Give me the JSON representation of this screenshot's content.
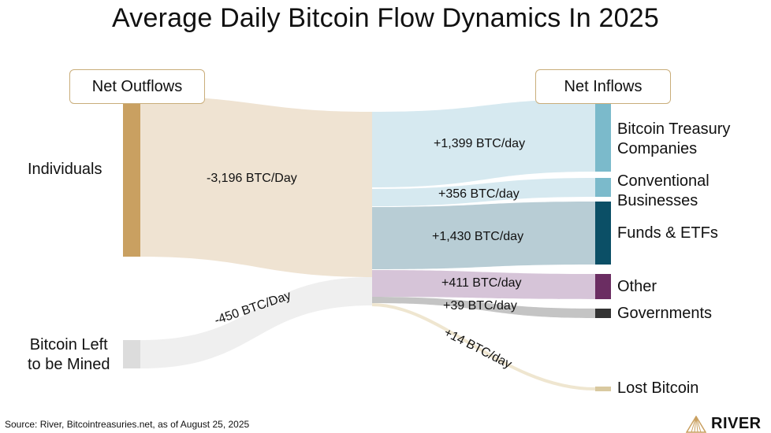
{
  "title": "Average Daily Bitcoin Flow Dynamics In 2025",
  "headers": {
    "outflows": "Net Outflows",
    "inflows": "Net Inflows"
  },
  "sources": [
    {
      "name": "Individuals",
      "value": "-3,196 BTC/Day",
      "color": "#c9a061"
    },
    {
      "line1": "Bitcoin Left",
      "line2": "to be Mined",
      "value": "-450 BTC/Day",
      "color": "#dcdcdc"
    }
  ],
  "targets": [
    {
      "line1": "Bitcoin Treasury",
      "line2": "Companies",
      "value": "+1,399 BTC/day",
      "color": "#7bbacb",
      "flow_color": "#d6e9f0"
    },
    {
      "line1": "Conventional",
      "line2": "Businesses",
      "value": "+356 BTC/day",
      "color": "#7bbacb",
      "flow_color": "#d6e9f0"
    },
    {
      "line1": "Funds & ETFs",
      "value": "+1,430 BTC/day",
      "color": "#0b4f66",
      "flow_color": "#b8cdd5"
    },
    {
      "line1": "Other",
      "value": "+411 BTC/day",
      "color": "#6b2d62",
      "flow_color": "#d6c4d8"
    },
    {
      "line1": "Governments",
      "value": "+39 BTC/day",
      "color": "#333333",
      "flow_color": "#c4c4c4"
    },
    {
      "line1": "Lost Bitcoin",
      "value": "+14 BTC/day",
      "color": "#d9c9a0",
      "flow_color": "#efe6d0"
    }
  ],
  "source_note": "Source: River, Bitcointreasuries.net, as of August 25, 2025",
  "logo": "RIVER"
}
